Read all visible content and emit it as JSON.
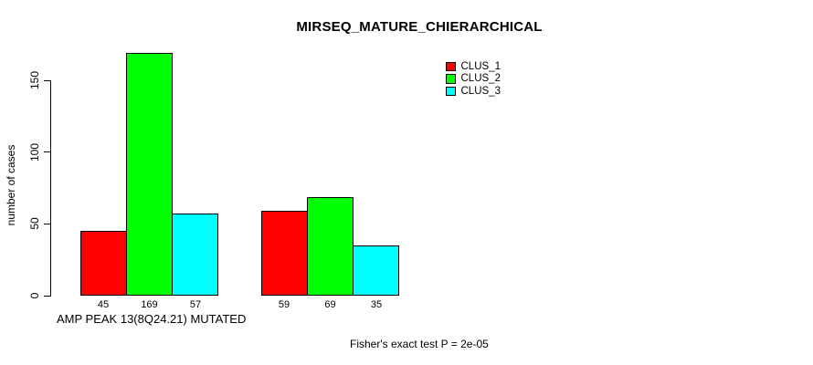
{
  "chart_data": {
    "type": "bar",
    "title": "MIRSEQ_MATURE_CHIERARCHICAL",
    "ylabel": "number of cases",
    "xlabel": "AMP PEAK 13(8Q24.21) MUTATED",
    "annotation": "Fisher's exact test P = 2e-05",
    "categories": [
      "AMP PEAK 13(8Q24.21) MUTATED",
      ""
    ],
    "series": [
      {
        "name": "CLUS_1",
        "color": "#ff0000",
        "values": [
          45,
          59
        ]
      },
      {
        "name": "CLUS_2",
        "color": "#00ff00",
        "values": [
          169,
          69
        ]
      },
      {
        "name": "CLUS_3",
        "color": "#00ffff",
        "values": [
          57,
          35
        ]
      }
    ],
    "bar_labels": [
      [
        45,
        169,
        57
      ],
      [
        59,
        69,
        35
      ]
    ],
    "yticks": [
      0,
      50,
      100,
      150
    ],
    "ylim": [
      0,
      169
    ],
    "grid": false,
    "legend_position": "top-right",
    "axis_color": "#000000",
    "background_color": "#ffffff"
  }
}
